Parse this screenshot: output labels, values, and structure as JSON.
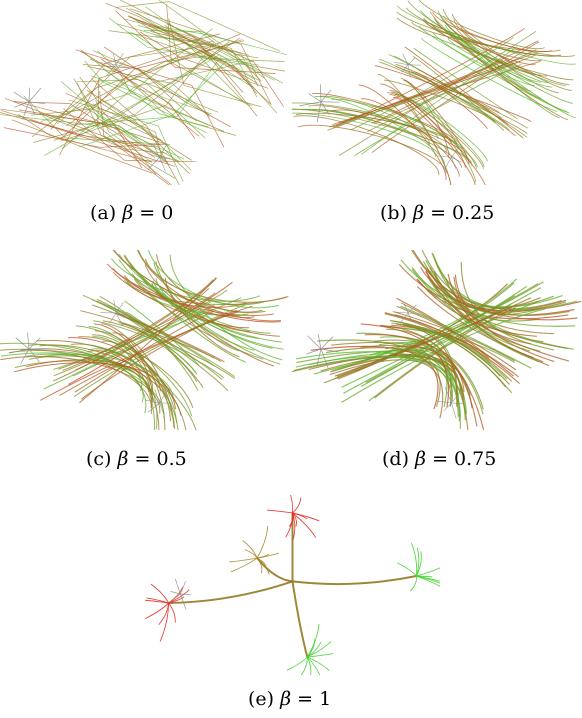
{
  "panels": [
    {
      "label": "(a)",
      "beta": "0"
    },
    {
      "label": "(b)",
      "beta": "0.25"
    },
    {
      "label": "(c)",
      "beta": "0.5"
    },
    {
      "label": "(d)",
      "beta": "0.75"
    },
    {
      "label": "(e)",
      "beta": "1"
    }
  ],
  "symbols": {
    "beta": "β",
    "equals": "="
  },
  "colors": {
    "red": "#e8231c",
    "green": "#3fd12c",
    "mixed": "#a9862d",
    "gray": "#8a8a8a",
    "background": "#ffffff"
  }
}
